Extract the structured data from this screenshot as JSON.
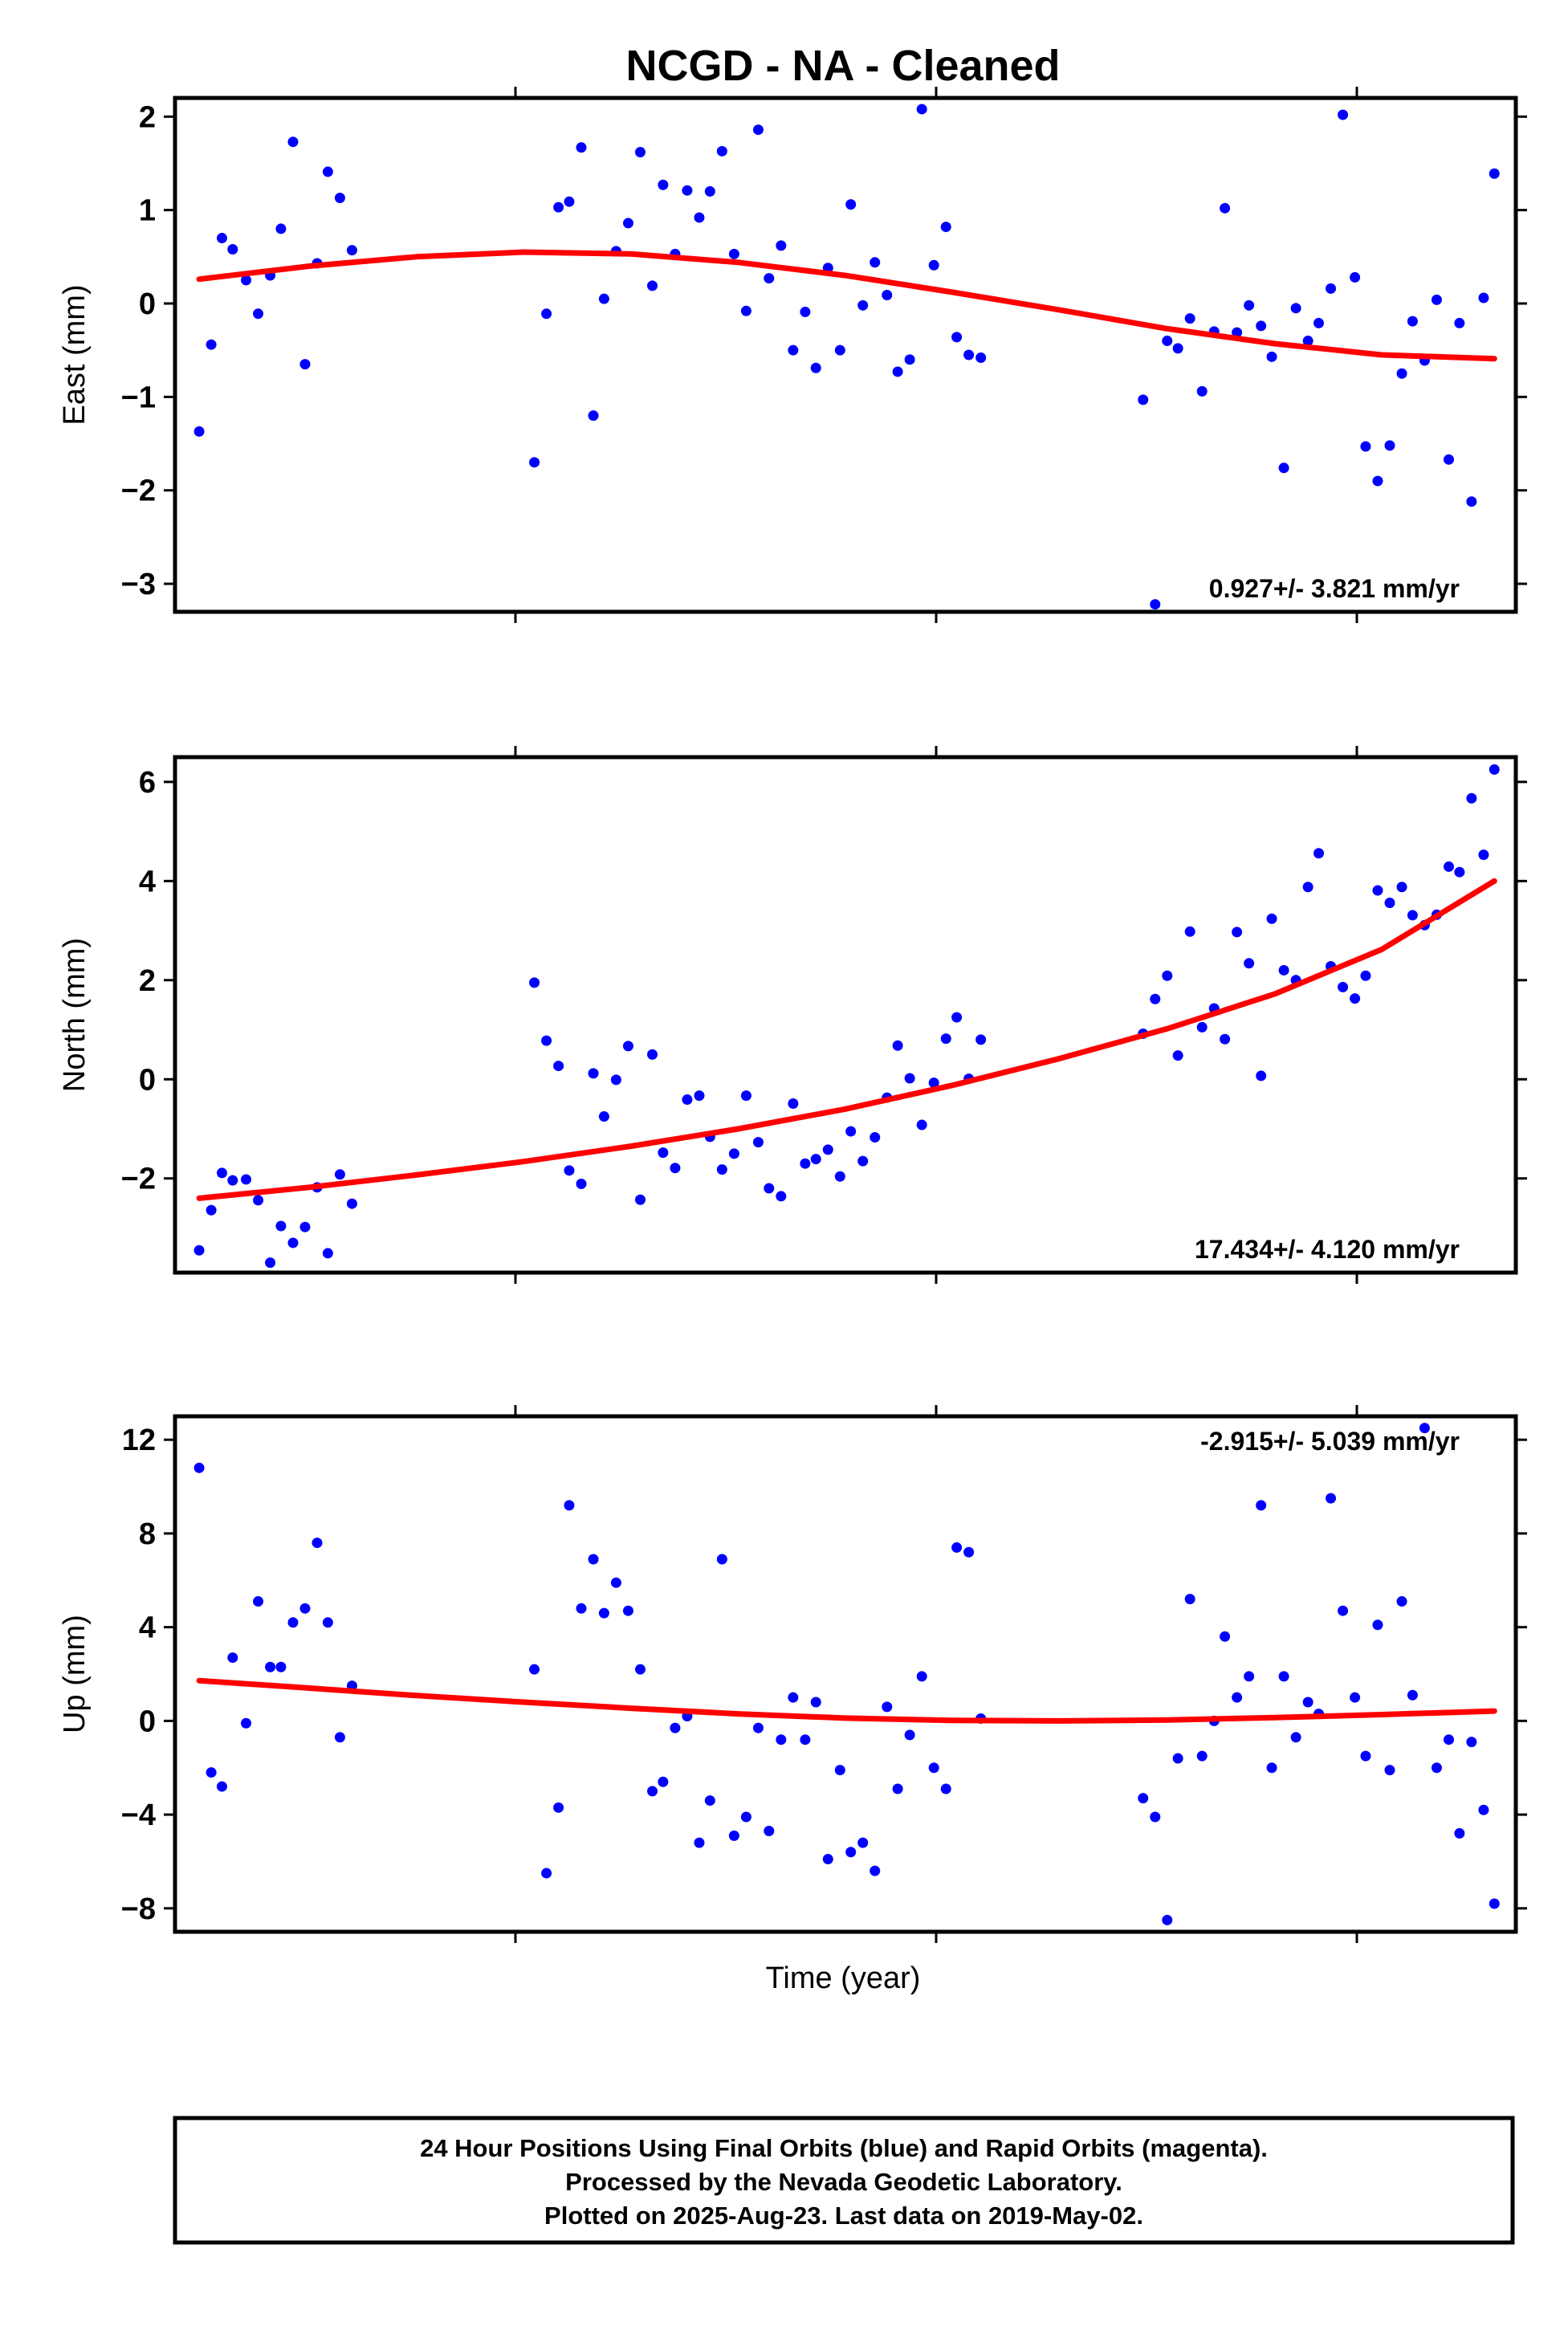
{
  "title": "NCGD  - NA - Cleaned",
  "xlabel": "Time (year)",
  "footer": {
    "lines": [
      "24 Hour Positions Using Final Orbits (blue) and Rapid Orbits (magenta).",
      "Processed by the Nevada Geodetic Laboratory.",
      "Plotted on 2025-Aug-23. Last data on 2019-May-02."
    ]
  },
  "colors": {
    "points": "#0000ff",
    "fit": "#ff0000",
    "frame": "#000000"
  },
  "chart_data": [
    {
      "type": "scatter",
      "ylabel": "East (mm)",
      "rate_label": "0.927+/- 3.821 mm/yr",
      "rate_position": "bottom-right",
      "ylim": [
        -3.3,
        2.2
      ],
      "yticks": [
        2,
        1,
        0,
        -1,
        -2,
        -3
      ],
      "ytick_labels": [
        "2",
        "1",
        "0",
        "−1",
        "−2",
        "−3"
      ],
      "xlim": [
        0,
        1
      ],
      "x": [
        0.018,
        0.027,
        0.035,
        0.043,
        0.053,
        0.062,
        0.071,
        0.079,
        0.088,
        0.097,
        0.106,
        0.114,
        0.123,
        0.132,
        0.268,
        0.277,
        0.286,
        0.294,
        0.303,
        0.312,
        0.32,
        0.329,
        0.338,
        0.347,
        0.356,
        0.364,
        0.373,
        0.382,
        0.391,
        0.399,
        0.408,
        0.417,
        0.426,
        0.435,
        0.443,
        0.452,
        0.461,
        0.47,
        0.478,
        0.487,
        0.496,
        0.504,
        0.513,
        0.522,
        0.531,
        0.539,
        0.548,
        0.557,
        0.566,
        0.575,
        0.583,
        0.592,
        0.601,
        0.722,
        0.731,
        0.74,
        0.748,
        0.757,
        0.766,
        0.775,
        0.783,
        0.792,
        0.801,
        0.81,
        0.818,
        0.827,
        0.836,
        0.845,
        0.853,
        0.862,
        0.871,
        0.88,
        0.888,
        0.897,
        0.906,
        0.915,
        0.923,
        0.932,
        0.941,
        0.95,
        0.958,
        0.967,
        0.976,
        0.984
      ],
      "series": [
        {
          "values": [
            -1.37,
            -0.44,
            0.7,
            0.58,
            0.25,
            -0.11,
            0.3,
            0.8,
            1.73,
            -0.65,
            0.43,
            1.41,
            1.13,
            0.57,
            -1.7,
            -0.11,
            1.03,
            1.09,
            1.67,
            -1.2,
            0.05,
            0.56,
            0.86,
            1.62,
            0.19,
            1.27,
            0.53,
            1.21,
            0.92,
            1.2,
            1.63,
            0.53,
            -0.08,
            1.86,
            0.27,
            0.62,
            -0.5,
            -0.09,
            -0.69,
            0.38,
            -0.5,
            1.06,
            -0.02,
            0.44,
            0.09,
            -0.73,
            -0.6,
            2.08,
            0.41,
            0.82,
            -0.36,
            -0.55,
            -0.58,
            -1.03,
            -3.22,
            -0.4,
            -0.48,
            -0.16,
            -0.94,
            -0.3,
            1.02,
            -0.31,
            -0.02,
            -0.24,
            -0.57,
            -1.76,
            -0.05,
            -0.4,
            -0.21,
            0.16,
            2.02,
            0.28,
            -1.53,
            -1.9,
            -1.52,
            -0.75,
            -0.19,
            -0.61,
            0.04,
            -1.67,
            -0.21,
            -2.12,
            0.06,
            1.39
          ]
        },
        {
          "type": "line",
          "fit_x": [
            0.018,
            0.1,
            0.18,
            0.26,
            0.34,
            0.42,
            0.5,
            0.58,
            0.66,
            0.74,
            0.82,
            0.9,
            0.984
          ],
          "fit_values": [
            0.26,
            0.4,
            0.5,
            0.55,
            0.53,
            0.44,
            0.3,
            0.12,
            -0.07,
            -0.27,
            -0.43,
            -0.55,
            -0.59
          ]
        }
      ]
    },
    {
      "type": "scatter",
      "ylabel": "North (mm)",
      "rate_label": "17.434+/- 4.120 mm/yr",
      "rate_position": "bottom-right",
      "ylim": [
        -3.9,
        6.5
      ],
      "yticks": [
        6,
        4,
        2,
        0,
        -2
      ],
      "ytick_labels": [
        "6",
        "4",
        "2",
        "0",
        "−2"
      ],
      "xlim": [
        0,
        1
      ],
      "x": [
        0.018,
        0.027,
        0.035,
        0.043,
        0.053,
        0.062,
        0.071,
        0.079,
        0.088,
        0.097,
        0.106,
        0.114,
        0.123,
        0.132,
        0.268,
        0.277,
        0.286,
        0.294,
        0.303,
        0.312,
        0.32,
        0.329,
        0.338,
        0.347,
        0.356,
        0.364,
        0.373,
        0.382,
        0.391,
        0.399,
        0.408,
        0.417,
        0.426,
        0.435,
        0.443,
        0.452,
        0.461,
        0.47,
        0.478,
        0.487,
        0.496,
        0.504,
        0.513,
        0.522,
        0.531,
        0.539,
        0.548,
        0.557,
        0.566,
        0.575,
        0.583,
        0.592,
        0.601,
        0.722,
        0.731,
        0.74,
        0.748,
        0.757,
        0.766,
        0.775,
        0.783,
        0.792,
        0.801,
        0.81,
        0.818,
        0.827,
        0.836,
        0.845,
        0.853,
        0.862,
        0.871,
        0.88,
        0.888,
        0.897,
        0.906,
        0.915,
        0.923,
        0.932,
        0.941,
        0.95,
        0.958,
        0.967,
        0.976,
        0.984
      ],
      "series": [
        {
          "values": [
            -3.45,
            -2.64,
            -1.89,
            -2.04,
            -2.02,
            -2.44,
            -3.7,
            -2.96,
            -3.3,
            -2.98,
            -2.18,
            -3.51,
            -1.92,
            -2.51,
            1.95,
            0.78,
            0.27,
            -1.84,
            -2.11,
            0.12,
            -0.75,
            -0.01,
            0.67,
            -2.43,
            0.5,
            -1.48,
            -1.79,
            -0.41,
            -0.33,
            -1.16,
            -1.82,
            -1.5,
            -0.33,
            -1.27,
            -2.2,
            -2.36,
            -0.49,
            -1.7,
            -1.61,
            -1.42,
            -1.96,
            -1.05,
            -1.65,
            -1.17,
            -0.37,
            0.68,
            0.02,
            -0.92,
            -0.07,
            0.82,
            1.25,
            0.01,
            0.8,
            0.92,
            1.62,
            2.09,
            0.48,
            2.98,
            1.05,
            1.43,
            0.81,
            2.97,
            2.34,
            0.07,
            3.24,
            2.2,
            2.0,
            3.88,
            4.56,
            2.28,
            1.86,
            1.63,
            2.09,
            3.81,
            3.56,
            3.88,
            3.31,
            3.11,
            3.32,
            4.29,
            4.18,
            5.67,
            4.53,
            6.25
          ]
        },
        {
          "type": "line",
          "fit_x": [
            0.018,
            0.1,
            0.18,
            0.26,
            0.34,
            0.42,
            0.5,
            0.58,
            0.66,
            0.74,
            0.82,
            0.9,
            0.984
          ],
          "fit_values": [
            -2.4,
            -2.18,
            -1.93,
            -1.66,
            -1.35,
            -1.0,
            -0.6,
            -0.12,
            0.42,
            1.02,
            1.72,
            2.62,
            4.0
          ]
        }
      ]
    },
    {
      "type": "scatter",
      "ylabel": "Up (mm)",
      "rate_label": "-2.915+/- 5.039 mm/yr",
      "rate_position": "top-right",
      "ylim": [
        -9,
        13
      ],
      "yticks": [
        12,
        8,
        4,
        0,
        -4,
        -8
      ],
      "ytick_labels": [
        "12",
        "8",
        "4",
        "0",
        "−4",
        "−8"
      ],
      "xlim": [
        0,
        1
      ],
      "x": [
        0.018,
        0.027,
        0.035,
        0.043,
        0.053,
        0.062,
        0.071,
        0.079,
        0.088,
        0.097,
        0.106,
        0.114,
        0.123,
        0.132,
        0.268,
        0.277,
        0.286,
        0.294,
        0.303,
        0.312,
        0.32,
        0.329,
        0.338,
        0.347,
        0.356,
        0.364,
        0.373,
        0.382,
        0.391,
        0.399,
        0.408,
        0.417,
        0.426,
        0.435,
        0.443,
        0.452,
        0.461,
        0.47,
        0.478,
        0.487,
        0.496,
        0.504,
        0.513,
        0.522,
        0.531,
        0.539,
        0.548,
        0.557,
        0.566,
        0.575,
        0.583,
        0.592,
        0.601,
        0.722,
        0.731,
        0.74,
        0.748,
        0.757,
        0.766,
        0.775,
        0.783,
        0.792,
        0.801,
        0.81,
        0.818,
        0.827,
        0.836,
        0.845,
        0.853,
        0.862,
        0.871,
        0.88,
        0.888,
        0.897,
        0.906,
        0.915,
        0.923,
        0.932,
        0.941,
        0.95,
        0.958,
        0.967,
        0.976,
        0.984
      ],
      "series": [
        {
          "values": [
            10.8,
            -2.2,
            -2.8,
            2.7,
            -0.1,
            5.1,
            2.3,
            2.3,
            4.2,
            4.8,
            7.6,
            4.2,
            -0.7,
            1.5,
            2.2,
            -6.5,
            -3.7,
            9.2,
            4.8,
            6.9,
            4.6,
            5.9,
            4.7,
            2.2,
            -3.0,
            -2.6,
            -0.3,
            0.2,
            -5.2,
            -3.4,
            6.9,
            -4.9,
            -4.1,
            -0.3,
            -4.7,
            -0.8,
            1.0,
            -0.8,
            0.8,
            -5.9,
            -2.1,
            -5.6,
            -5.2,
            -6.4,
            0.6,
            -2.9,
            -0.6,
            1.9,
            -2.0,
            -2.9,
            7.4,
            7.2,
            0.1,
            -3.3,
            -4.1,
            -8.5,
            -1.6,
            5.2,
            -1.5,
            0.0,
            3.6,
            1.0,
            1.9,
            9.2,
            -2.0,
            1.9,
            -0.7,
            0.8,
            0.3,
            9.5,
            4.7,
            1.0,
            -1.5,
            4.1,
            -2.1,
            5.1,
            1.1,
            12.5,
            -2.0,
            -0.8,
            -4.8,
            -0.9,
            -3.8,
            -7.8
          ]
        },
        {
          "type": "line",
          "fit_x": [
            0.018,
            0.1,
            0.18,
            0.26,
            0.34,
            0.42,
            0.5,
            0.58,
            0.66,
            0.74,
            0.82,
            0.9,
            0.984
          ],
          "fit_values": [
            1.72,
            1.4,
            1.08,
            0.8,
            0.54,
            0.3,
            0.12,
            0.02,
            0.0,
            0.04,
            0.14,
            0.27,
            0.42
          ]
        }
      ]
    }
  ]
}
